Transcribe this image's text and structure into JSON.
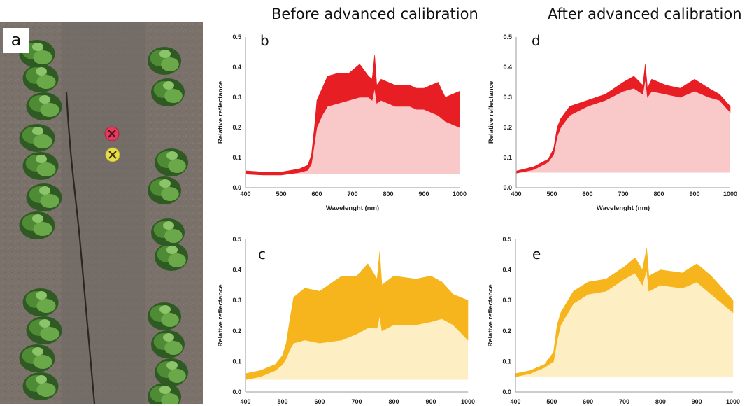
{
  "titles": {
    "before": "Before advanced calibration",
    "after": "After advanced calibration"
  },
  "panel_a": {
    "letter": "a"
  },
  "colors": {
    "red_dark": "#e81e25",
    "red_light": "#f9c8c8",
    "yellow_dark": "#f6b51c",
    "yellow_light": "#fdeec4"
  },
  "chart_data": [
    {
      "panel": "b",
      "type": "area",
      "column": "before",
      "xlabel": "Wavelenght (nm)",
      "ylabel": "Relative reflectance",
      "xlim": [
        400,
        1000
      ],
      "ylim": [
        0,
        0.5
      ],
      "xticks": [
        400,
        500,
        600,
        700,
        800,
        900,
        1000
      ],
      "yticks": [
        0.0,
        0.1,
        0.2,
        0.3,
        0.4,
        0.5
      ],
      "color_dark": "#e81e25",
      "color_light": "#f9c8c8",
      "x": [
        400,
        450,
        500,
        550,
        575,
        585,
        595,
        600,
        615,
        630,
        660,
        690,
        720,
        745,
        755,
        762,
        768,
        780,
        820,
        860,
        880,
        900,
        920,
        940,
        960,
        980,
        1000
      ],
      "upper": [
        0.056,
        0.052,
        0.052,
        0.062,
        0.075,
        0.11,
        0.22,
        0.29,
        0.33,
        0.37,
        0.38,
        0.38,
        0.41,
        0.37,
        0.36,
        0.44,
        0.34,
        0.36,
        0.34,
        0.34,
        0.33,
        0.33,
        0.34,
        0.35,
        0.3,
        0.31,
        0.32
      ],
      "lower": [
        0.045,
        0.042,
        0.042,
        0.05,
        0.058,
        0.08,
        0.16,
        0.2,
        0.24,
        0.27,
        0.28,
        0.29,
        0.3,
        0.3,
        0.29,
        0.33,
        0.28,
        0.29,
        0.27,
        0.27,
        0.26,
        0.26,
        0.25,
        0.24,
        0.22,
        0.21,
        0.2
      ],
      "base": 0.045
    },
    {
      "panel": "d",
      "type": "area",
      "column": "after",
      "xlabel": "Wavelenght (nm)",
      "ylabel": "Relative reflectance",
      "xlim": [
        400,
        1000
      ],
      "ylim": [
        0,
        0.5
      ],
      "xticks": [
        400,
        500,
        600,
        700,
        800,
        900,
        1000
      ],
      "yticks": [
        0.0,
        0.1,
        0.2,
        0.3,
        0.4,
        0.5
      ],
      "color_dark": "#e81e25",
      "color_light": "#f9c8c8",
      "x": [
        400,
        450,
        490,
        505,
        515,
        525,
        550,
        600,
        650,
        700,
        730,
        755,
        762,
        768,
        780,
        820,
        860,
        900,
        940,
        970,
        1000
      ],
      "upper": [
        0.055,
        0.07,
        0.095,
        0.13,
        0.2,
        0.23,
        0.27,
        0.29,
        0.31,
        0.35,
        0.37,
        0.34,
        0.41,
        0.33,
        0.36,
        0.34,
        0.33,
        0.36,
        0.33,
        0.31,
        0.27
      ],
      "lower": [
        0.048,
        0.06,
        0.085,
        0.11,
        0.17,
        0.2,
        0.24,
        0.27,
        0.29,
        0.32,
        0.33,
        0.31,
        0.36,
        0.3,
        0.32,
        0.31,
        0.3,
        0.32,
        0.3,
        0.29,
        0.25
      ],
      "base": 0.05
    },
    {
      "panel": "c",
      "type": "area",
      "column": "before",
      "xlabel": "",
      "ylabel": "Relative reflectance",
      "xlim": [
        400,
        1000
      ],
      "ylim": [
        0,
        0.5
      ],
      "xticks": [
        400,
        500,
        600,
        700,
        800,
        900,
        1000
      ],
      "yticks": [
        0.0,
        0.1,
        0.2,
        0.3,
        0.4,
        0.5
      ],
      "color_dark": "#f6b51c",
      "color_light": "#fdeec4",
      "x": [
        400,
        440,
        480,
        500,
        510,
        520,
        530,
        560,
        600,
        660,
        700,
        730,
        755,
        762,
        768,
        800,
        860,
        900,
        930,
        960,
        1000
      ],
      "upper": [
        0.06,
        0.07,
        0.09,
        0.12,
        0.16,
        0.24,
        0.31,
        0.34,
        0.33,
        0.38,
        0.38,
        0.42,
        0.37,
        0.46,
        0.35,
        0.38,
        0.37,
        0.38,
        0.36,
        0.32,
        0.3
      ],
      "lower": [
        0.04,
        0.05,
        0.07,
        0.09,
        0.11,
        0.14,
        0.16,
        0.17,
        0.16,
        0.17,
        0.19,
        0.21,
        0.21,
        0.25,
        0.2,
        0.22,
        0.22,
        0.23,
        0.24,
        0.22,
        0.17
      ],
      "base": 0.04
    },
    {
      "panel": "e",
      "type": "area",
      "column": "after",
      "xlabel": "",
      "ylabel": "Relative reflectance",
      "xlim": [
        400,
        1000
      ],
      "ylim": [
        0,
        0.5
      ],
      "xticks": [
        400,
        500,
        600,
        700,
        800,
        900,
        1000
      ],
      "yticks": [
        0.0,
        0.1,
        0.2,
        0.3,
        0.4,
        0.5
      ],
      "color_dark": "#f6b51c",
      "color_light": "#fdeec4",
      "x": [
        400,
        440,
        480,
        505,
        515,
        525,
        560,
        600,
        650,
        700,
        730,
        750,
        762,
        768,
        800,
        860,
        900,
        940,
        970,
        1000
      ],
      "upper": [
        0.06,
        0.07,
        0.09,
        0.13,
        0.22,
        0.26,
        0.33,
        0.36,
        0.37,
        0.41,
        0.44,
        0.4,
        0.47,
        0.38,
        0.4,
        0.39,
        0.42,
        0.38,
        0.34,
        0.3
      ],
      "lower": [
        0.05,
        0.06,
        0.08,
        0.1,
        0.17,
        0.22,
        0.29,
        0.32,
        0.33,
        0.37,
        0.39,
        0.35,
        0.4,
        0.33,
        0.35,
        0.34,
        0.36,
        0.32,
        0.29,
        0.26
      ],
      "base": 0.05
    }
  ]
}
